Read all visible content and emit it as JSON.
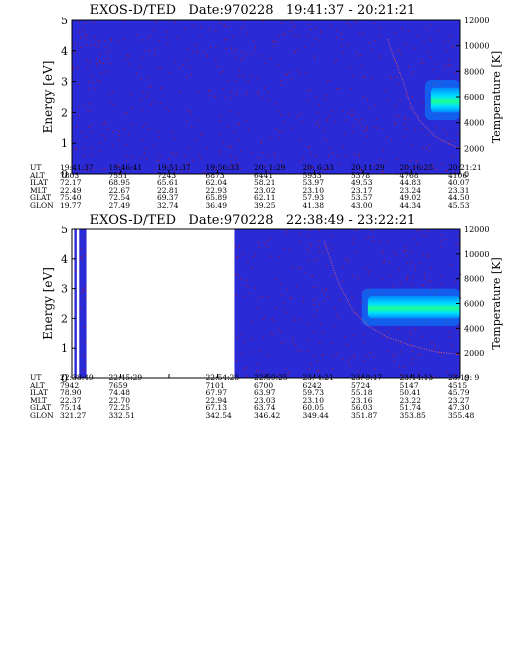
{
  "colors": {
    "background_blue": "#2a2ad6",
    "noise_red": "#b0182a",
    "signal_cyan": "#00e0ff",
    "signal_green": "#20ff90",
    "signal_light": "#0088ff",
    "gap_white": "#ffffff",
    "axis": "#000000"
  },
  "chart_data": [
    {
      "type": "heatmap",
      "title": "EXOS-D/TED   Date:970228   19:41:37 - 20:21:21",
      "ylabel": "Energy [eV]",
      "y2label": "Temperature [K]",
      "ylim": [
        0,
        5
      ],
      "y2lim": [
        0,
        12000
      ],
      "yticks": [
        "0",
        "1",
        "2",
        "3",
        "4",
        "5"
      ],
      "y2ticks": [
        "0",
        "2000",
        "4000",
        "6000",
        "8000",
        "10000",
        "12000"
      ],
      "n_columns": 9,
      "gaps": [],
      "signal": {
        "t_start": 7.4,
        "t_end": 8.0,
        "e_low": 2.0,
        "e_high": 2.8,
        "peak_e": 2.45
      },
      "temperature_curve": [
        {
          "t": 6.5,
          "k": 10500
        },
        {
          "t": 6.8,
          "k": 7500
        },
        {
          "t": 7.0,
          "k": 5200
        },
        {
          "t": 7.2,
          "k": 4000
        },
        {
          "t": 7.5,
          "k": 2900
        },
        {
          "t": 7.8,
          "k": 2300
        },
        {
          "t": 8.0,
          "k": 2000
        }
      ],
      "table": {
        "labels": [
          "UT",
          "ALT",
          "ILAT",
          "MLT",
          "GLAT",
          "GLON"
        ],
        "columns": [
          [
            "19:41:37",
            "7803",
            "72.17",
            "22.49",
            "75.40",
            "19.77"
          ],
          [
            "19:46:41",
            "7551",
            "68.95",
            "22.67",
            "72.54",
            "27.49"
          ],
          [
            "19:51:37",
            "7243",
            "65.61",
            "22.81",
            "69.37",
            "32.74"
          ],
          [
            "19:56:33",
            "6873",
            "62.04",
            "22.93",
            "65.89",
            "36.49"
          ],
          [
            "20: 1:29",
            "6441",
            "58.21",
            "23.02",
            "62.11",
            "39.25"
          ],
          [
            "20: 6:33",
            "5933",
            "53.97",
            "23.10",
            "57.93",
            "41.38"
          ],
          [
            "20:11:29",
            "5378",
            "49.53",
            "23.17",
            "53.57",
            "43.00"
          ],
          [
            "20:16:25",
            "4768",
            "44.83",
            "23.24",
            "49.02",
            "44.34"
          ],
          [
            "20:21:21",
            "4106",
            "40.07",
            "23.31",
            "44.50",
            "45.53"
          ]
        ]
      }
    },
    {
      "type": "heatmap",
      "title": "EXOS-D/TED   Date:970228   22:38:49 - 23:22:21",
      "ylabel": "Energy [eV]",
      "y2label": "Temperature [K]",
      "ylim": [
        0,
        5
      ],
      "y2lim": [
        0,
        12000
      ],
      "yticks": [
        "0",
        "1",
        "2",
        "3",
        "4",
        "5"
      ],
      "y2ticks": [
        "0",
        "2000",
        "4000",
        "6000",
        "8000",
        "10000",
        "12000"
      ],
      "n_columns": 9,
      "gaps": [
        [
          0.0,
          0.05
        ],
        [
          0.1,
          0.15
        ],
        [
          0.3,
          3.35
        ]
      ],
      "signal": {
        "t_start": 6.1,
        "t_end": 8.0,
        "e_low": 2.0,
        "e_high": 2.75,
        "peak_e": 2.4
      },
      "temperature_curve": [
        {
          "t": 5.2,
          "k": 11000
        },
        {
          "t": 5.5,
          "k": 7600
        },
        {
          "t": 5.8,
          "k": 5400
        },
        {
          "t": 6.1,
          "k": 4200
        },
        {
          "t": 6.5,
          "k": 3300
        },
        {
          "t": 7.0,
          "k": 2600
        },
        {
          "t": 7.5,
          "k": 2100
        },
        {
          "t": 8.0,
          "k": 1900
        }
      ],
      "table": {
        "labels": [
          "UT",
          "ALT",
          "ILAT",
          "MLT",
          "GLAT",
          "GLON"
        ],
        "columns": [
          [
            "22:38:49",
            "7942",
            "78.90",
            "22.37",
            "75.14",
            "321.27"
          ],
          [
            "22:45:29",
            "7659",
            "74.48",
            "22.70",
            "72.25",
            "332.51"
          ],
          [
            "",
            "",
            "",
            "",
            "",
            ""
          ],
          [
            "22:54:25",
            "7101",
            "67.97",
            "22.94",
            "67.13",
            "342.54"
          ],
          [
            "22:59:25",
            "6700",
            "63.97",
            "23.03",
            "63.74",
            "346.42"
          ],
          [
            "23: 4:21",
            "6242",
            "59.73",
            "23.10",
            "60.05",
            "349.44"
          ],
          [
            "23: 9:17",
            "5724",
            "55.18",
            "23.16",
            "56.03",
            "351.87"
          ],
          [
            "23:14:13",
            "5147",
            "50.41",
            "23.22",
            "51.74",
            "353.85"
          ],
          [
            "23:19: 9",
            "4515",
            "45.79",
            "23.27",
            "47.30",
            "355.48"
          ]
        ]
      }
    }
  ]
}
